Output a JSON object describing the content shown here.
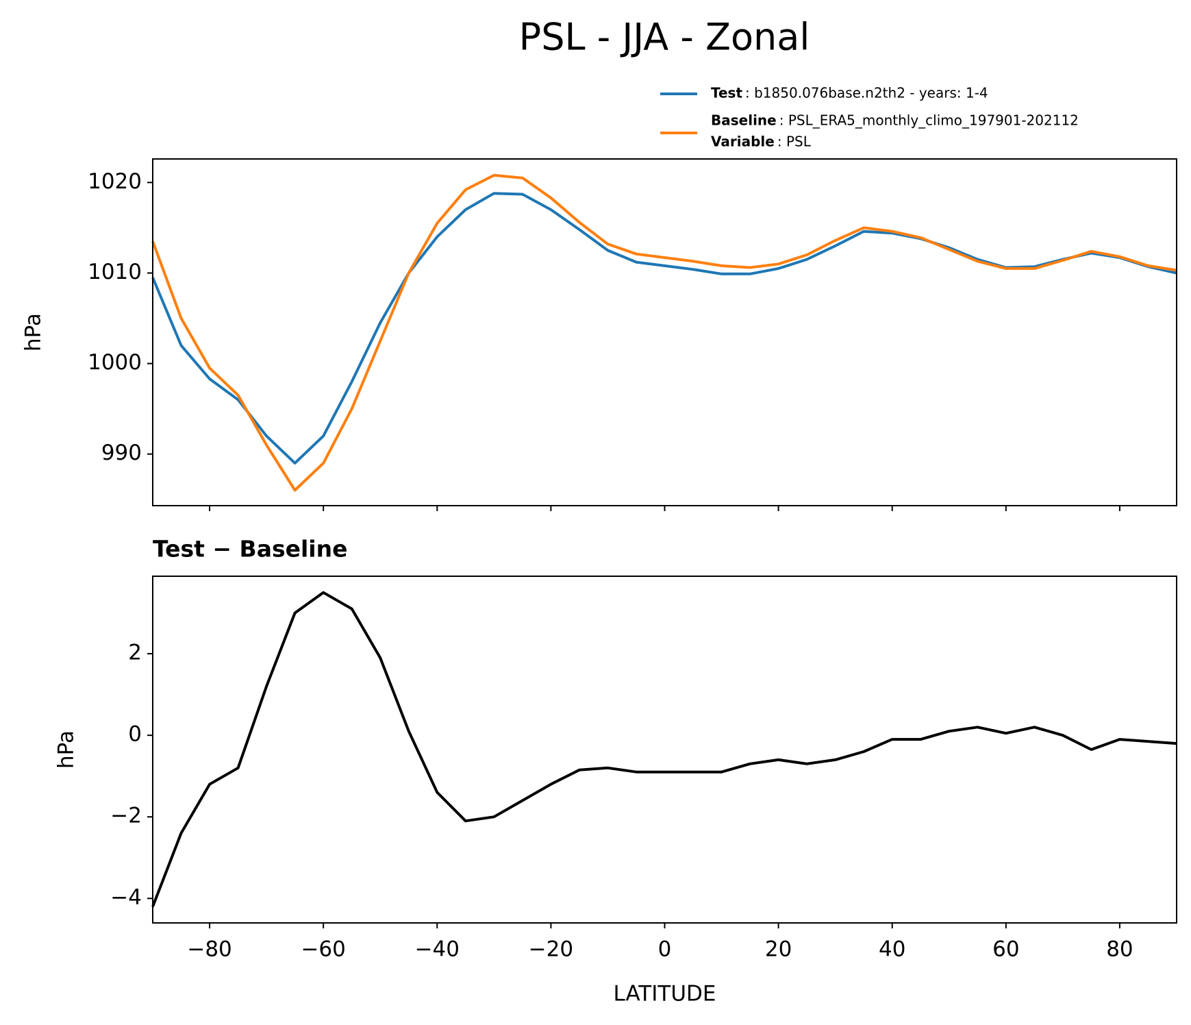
{
  "title": "PSL - JJA - Zonal",
  "chart_data": [
    {
      "type": "line",
      "x": [
        -90,
        -85,
        -80,
        -75,
        -70,
        -65,
        -60,
        -55,
        -50,
        -45,
        -40,
        -35,
        -30,
        -25,
        -20,
        -15,
        -10,
        -5,
        0,
        5,
        10,
        15,
        20,
        25,
        30,
        35,
        40,
        45,
        50,
        55,
        60,
        65,
        70,
        75,
        80,
        85,
        90
      ],
      "series": [
        {
          "name": "Test",
          "description": ": b1850.076base.n2th2 - years: 1-4",
          "color": "#1f77b4",
          "values": [
            1009.5,
            1002,
            998.3,
            996,
            992,
            989,
            992,
            998,
            1004.5,
            1010,
            1014,
            1017,
            1018.8,
            1018.7,
            1017,
            1014.8,
            1012.5,
            1011.2,
            1010.8,
            1010.4,
            1009.9,
            1009.9,
            1010.5,
            1011.5,
            1013,
            1014.6,
            1014.4,
            1013.8,
            1012.8,
            1011.5,
            1010.6,
            1010.7,
            1011.5,
            1012.2,
            1011.7,
            1010.7,
            1010
          ]
        },
        {
          "name": "Baseline",
          "description": ": PSL_ERA5_monthly_climo_197901-202112",
          "color": "#ff7f0e",
          "values": [
            1013.5,
            1005,
            999.5,
            996.5,
            991,
            986,
            989,
            995,
            1002.5,
            1010,
            1015.5,
            1019.2,
            1020.8,
            1020.5,
            1018.3,
            1015.6,
            1013.2,
            1012.1,
            1011.7,
            1011.3,
            1010.8,
            1010.6,
            1011,
            1012,
            1013.6,
            1015,
            1014.6,
            1013.9,
            1012.6,
            1011.3,
            1010.5,
            1010.5,
            1011.4,
            1012.4,
            1011.8,
            1010.8,
            1010.3
          ]
        }
      ],
      "legend_extra": {
        "name": "Variable",
        "description": ": PSL"
      },
      "ylabel": "hPa",
      "xlim": [
        -90,
        90
      ],
      "xticks": [
        -80,
        -60,
        -40,
        -20,
        0,
        20,
        40,
        60,
        80
      ],
      "show_xtick_labels": false,
      "ylim": [
        984.3,
        1022.6
      ],
      "yticks": [
        990,
        1000,
        1010,
        1020
      ]
    },
    {
      "type": "line",
      "title": "Test − Baseline",
      "x": [
        -90,
        -85,
        -80,
        -75,
        -70,
        -65,
        -60,
        -55,
        -50,
        -45,
        -40,
        -35,
        -30,
        -25,
        -20,
        -15,
        -10,
        -5,
        0,
        5,
        10,
        15,
        20,
        25,
        30,
        35,
        40,
        45,
        50,
        55,
        60,
        65,
        70,
        75,
        80,
        85,
        90
      ],
      "series": [
        {
          "color": "#000000",
          "values": [
            -4.2,
            -2.4,
            -1.2,
            -0.8,
            1.2,
            3.0,
            3.5,
            3.1,
            1.9,
            0.1,
            -1.4,
            -2.1,
            -2.0,
            -1.6,
            -1.2,
            -0.85,
            -0.8,
            -0.9,
            -0.9,
            -0.9,
            -0.9,
            -0.7,
            -0.6,
            -0.7,
            -0.6,
            -0.4,
            -0.1,
            -0.1,
            0.1,
            0.2,
            0.05,
            0.2,
            0.0,
            -0.35,
            -0.1,
            -0.15,
            -0.2
          ]
        }
      ],
      "ylabel": "hPa",
      "xlabel": "LATITUDE",
      "xlim": [
        -90,
        90
      ],
      "xticks": [
        {
          "value": -80,
          "label": "−80"
        },
        {
          "value": -60,
          "label": "−60"
        },
        {
          "value": -40,
          "label": "−40"
        },
        {
          "value": -20,
          "label": "−20"
        },
        0,
        20,
        40,
        60,
        80
      ],
      "show_xtick_labels": true,
      "ylim": [
        -4.6,
        3.9
      ],
      "yticks": [
        {
          "value": -4,
          "label": "−4"
        },
        {
          "value": -2,
          "label": "−2"
        },
        0,
        2
      ]
    }
  ]
}
